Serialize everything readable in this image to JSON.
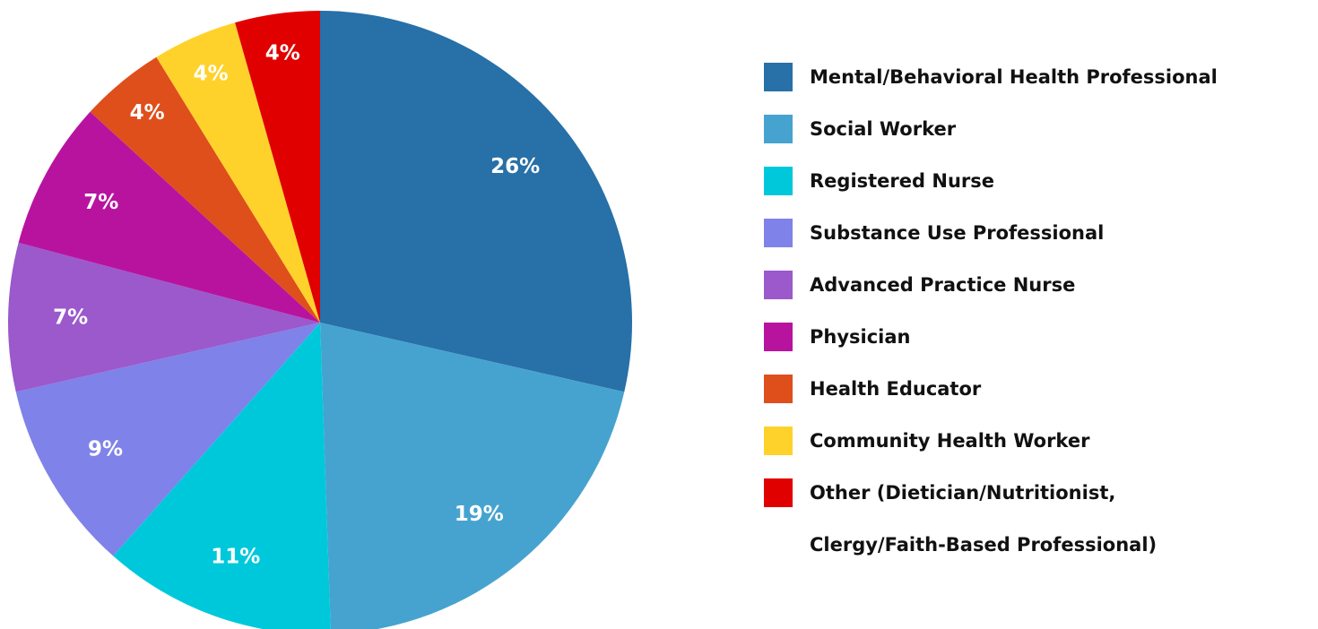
{
  "chart_data": {
    "type": "pie",
    "categories": [
      "Mental/Behavioral Health Professional",
      "Social Worker",
      "Registered Nurse",
      "Substance Use Professional",
      "Advanced Practice Nurse",
      "Physician",
      "Health Educator",
      "Community Health Worker",
      "Other (Dietician/Nutritionist, Clergy/Faith-Based Professional)"
    ],
    "values": [
      26,
      19,
      11,
      9,
      7,
      7,
      4,
      4,
      4
    ],
    "value_labels": [
      "26%",
      "19%",
      "11%",
      "9%",
      "7%",
      "7%",
      "4%",
      "4%",
      "4%"
    ],
    "colors": [
      "#2770a8",
      "#46a3cf",
      "#00c8db",
      "#7f82e8",
      "#9b59cc",
      "#b8139f",
      "#de4f1c",
      "#ffd22b",
      "#e00000"
    ],
    "legend": "right"
  }
}
